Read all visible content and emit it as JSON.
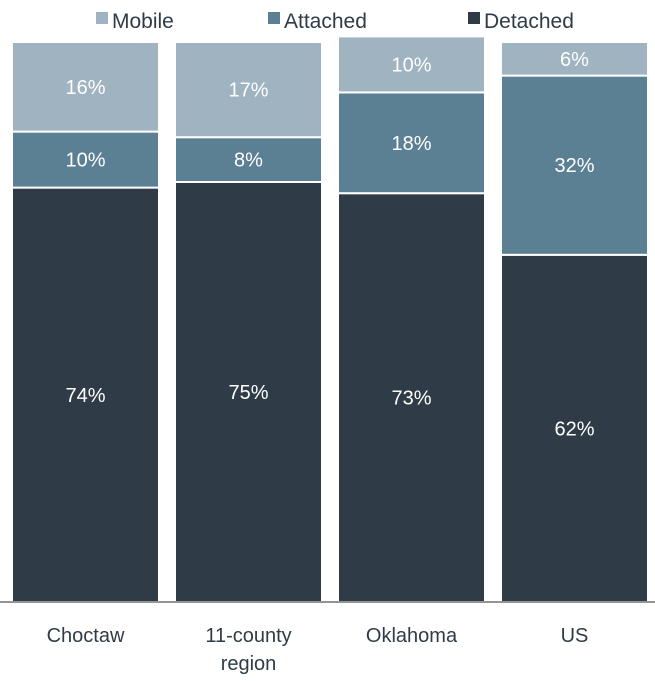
{
  "chart_data": {
    "type": "bar",
    "stacked": true,
    "categories": [
      "Choctaw",
      "11-county region",
      "Oklahoma",
      "US"
    ],
    "category_lines": [
      [
        "Choctaw"
      ],
      [
        "11-county",
        "region"
      ],
      [
        "Oklahoma"
      ],
      [
        "US"
      ]
    ],
    "series": [
      {
        "name": "Detached",
        "color": "#2f3c47",
        "values": [
          74,
          75,
          73,
          62
        ],
        "labels": [
          "74%",
          "75%",
          "73%",
          "62%"
        ]
      },
      {
        "name": "Attached",
        "color": "#5b7f93",
        "values": [
          10,
          8,
          18,
          32
        ],
        "labels": [
          "10%",
          "8%",
          "18%",
          "32%"
        ]
      },
      {
        "name": "Mobile",
        "color": "#9fb3c1",
        "values": [
          16,
          17,
          10,
          6
        ],
        "labels": [
          "16%",
          "17%",
          "10%",
          "6%"
        ]
      }
    ],
    "legend_order": [
      "Mobile",
      "Attached",
      "Detached"
    ],
    "legend_position": "top",
    "ylim": [
      0,
      100
    ],
    "grid": false,
    "title": "",
    "xlabel": "",
    "ylabel": ""
  }
}
